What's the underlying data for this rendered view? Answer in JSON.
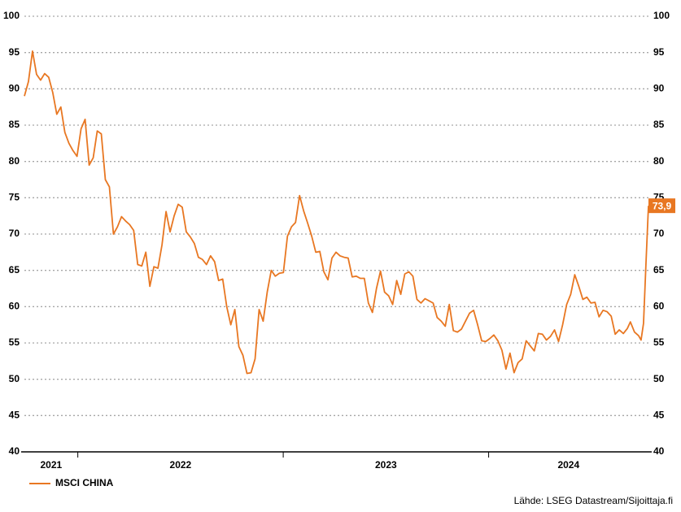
{
  "chart_data": {
    "type": "line",
    "x": [
      2021.74,
      2021.7597,
      2021.7794,
      2021.7991,
      2021.8188,
      2021.8385,
      2021.8582,
      2021.8779,
      2021.8976,
      2021.9173,
      2021.937,
      2021.9567,
      2021.9764,
      2021.9961,
      2022.0158,
      2022.0355,
      2022.0552,
      2022.0749,
      2022.0946,
      2022.1143,
      2022.134,
      2022.1537,
      2022.1734,
      2022.1931,
      2022.2128,
      2022.2325,
      2022.2522,
      2022.2719,
      2022.2916,
      2022.3113,
      2022.331,
      2022.3507,
      2022.3704,
      2022.3901,
      2022.4098,
      2022.4295,
      2022.4492,
      2022.4689,
      2022.4886,
      2022.5083,
      2022.528,
      2022.5477,
      2022.5674,
      2022.5871,
      2022.6068,
      2022.6265,
      2022.6462,
      2022.6659,
      2022.6856,
      2022.7053,
      2022.725,
      2022.7447,
      2022.7644,
      2022.7841,
      2022.8038,
      2022.8235,
      2022.8432,
      2022.8629,
      2022.8826,
      2022.9023,
      2022.922,
      2022.9417,
      2022.9614,
      2022.9811,
      2023.0008,
      2023.0205,
      2023.0402,
      2023.0599,
      2023.0796,
      2023.0993,
      2023.119,
      2023.1387,
      2023.1584,
      2023.1781,
      2023.1978,
      2023.2175,
      2023.2372,
      2023.2569,
      2023.2766,
      2023.2963,
      2023.316,
      2023.3357,
      2023.3554,
      2023.3751,
      2023.3948,
      2023.4145,
      2023.4342,
      2023.4539,
      2023.4736,
      2023.4933,
      2023.513,
      2023.5327,
      2023.5524,
      2023.5721,
      2023.5918,
      2023.6115,
      2023.6312,
      2023.6509,
      2023.6706,
      2023.6903,
      2023.71,
      2023.7297,
      2023.7494,
      2023.7691,
      2023.7888,
      2023.8085,
      2023.8282,
      2023.8479,
      2023.8676,
      2023.8873,
      2023.907,
      2023.9267,
      2023.9464,
      2023.9661,
      2023.9858,
      2024.0055,
      2024.0252,
      2024.0449,
      2024.0646,
      2024.0843,
      2024.104,
      2024.1237,
      2024.1434,
      2024.1631,
      2024.1828,
      2024.2025,
      2024.2222,
      2024.2419,
      2024.2616,
      2024.2813,
      2024.301,
      2024.3207,
      2024.3404,
      2024.3601,
      2024.3798,
      2024.3995,
      2024.4192,
      2024.4389,
      2024.4586,
      2024.4783,
      2024.498,
      2024.5177,
      2024.5374,
      2024.5571,
      2024.5768,
      2024.5965,
      2024.6162,
      2024.6359,
      2024.6556,
      2024.6753,
      2024.69,
      2024.71,
      2024.73,
      2024.742,
      2024.754,
      2024.766,
      2024.778
    ],
    "series": [
      {
        "name": "MSCI CHINA",
        "color": "#e87722",
        "axis": "y",
        "end_label": "73,9",
        "values": [
          89,
          91,
          95.2,
          92,
          91.2,
          92.1,
          91.6,
          89.5,
          86.5,
          87.5,
          84,
          82.5,
          81.5,
          80.7,
          84.5,
          85.8,
          79.5,
          80.5,
          84.2,
          83.8,
          77.5,
          76.5,
          70,
          71,
          72.4,
          71.8,
          71.3,
          70.5,
          65.8,
          65.6,
          67.5,
          62.8,
          65.5,
          65.3,
          68.5,
          73.1,
          70.3,
          72.5,
          74.1,
          73.7,
          70.3,
          69.6,
          68.7,
          66.8,
          66.5,
          65.8,
          67,
          66.2,
          63.6,
          63.8,
          60,
          57.5,
          59.6,
          54.5,
          53.3,
          50.8,
          50.9,
          52.8,
          59.6,
          58,
          62,
          65,
          64.2,
          64.6,
          64.7,
          69.7,
          71,
          71.6,
          75.3,
          73.2,
          71.5,
          69.7,
          67.5,
          67.6,
          64.8,
          63.7,
          66.7,
          67.5,
          67,
          66.8,
          66.7,
          64.1,
          64.2,
          63.9,
          63.9,
          60.5,
          59.2,
          62.5,
          64.9,
          62,
          61.5,
          60.3,
          63.6,
          61.7,
          64.5,
          64.8,
          64.2,
          61,
          60.5,
          61.1,
          60.8,
          60.5,
          58.5,
          58,
          57.3,
          60.3,
          56.7,
          56.5,
          56.9,
          58,
          59.1,
          59.5,
          57.5,
          55.3,
          55.2,
          55.6,
          56.1,
          55.3,
          54,
          51.4,
          53.6,
          50.9,
          52.3,
          52.8,
          55.3,
          54.6,
          53.9,
          56.3,
          56.2,
          55.4,
          55.9,
          56.8,
          55.2,
          57.5,
          60.3,
          61.7,
          64.4,
          62.8,
          61,
          61.3,
          60.5,
          60.6,
          58.6,
          59.5,
          59.3,
          58.7,
          56.2,
          56.8,
          56.3,
          57,
          57.9,
          56.5,
          56,
          55.4,
          57.7,
          66,
          73.9
        ]
      }
    ],
    "xlim": [
      2021.74,
      2024.778
    ],
    "xticks": [
      2022,
      2023,
      2024
    ],
    "xtick_labels": [
      "2021",
      "2022",
      "2023",
      "2024"
    ],
    "ylim": [
      40,
      100
    ],
    "yticks": [
      40,
      45,
      50,
      55,
      60,
      65,
      70,
      75,
      80,
      85,
      90,
      95,
      100
    ],
    "y2lim": [
      40,
      100
    ],
    "y2ticks": [
      40,
      45,
      50,
      55,
      60,
      65,
      70,
      75,
      80,
      85,
      90,
      95,
      100
    ],
    "grid": true,
    "legend": "bottom-left",
    "source": "Lähde: LSEG Datastream/Sijoittaja.fi"
  }
}
